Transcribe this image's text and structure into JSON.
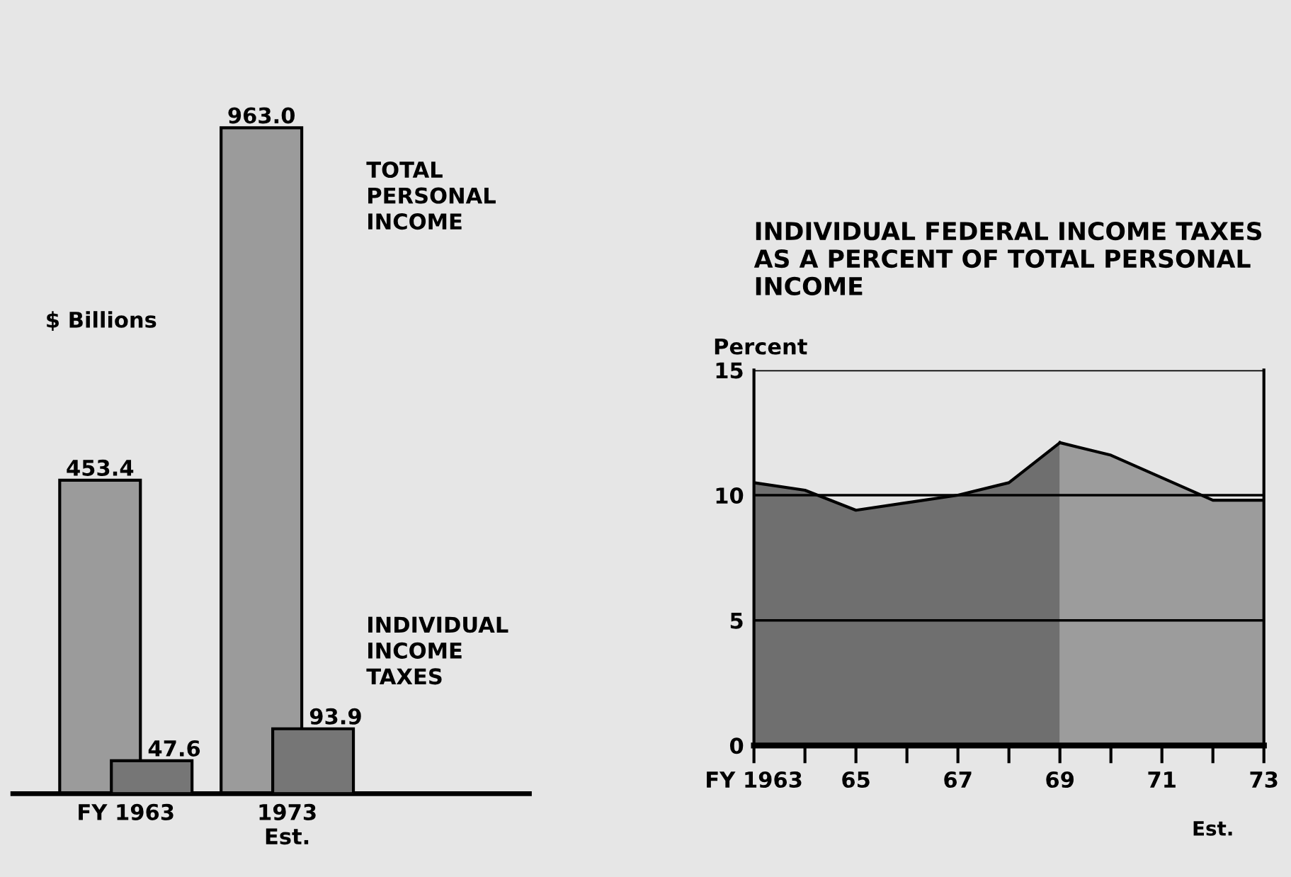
{
  "chart_data": [
    {
      "type": "bar",
      "ylabel": "$ Billions",
      "categories": [
        "FY 1963",
        "1973\nEst."
      ],
      "data_labels": true,
      "legend": false,
      "series": [
        {
          "name": "TOTAL PERSONAL INCOME",
          "color": "#9b9b9b",
          "values": [
            453.4,
            963.0
          ],
          "value_labels": [
            "453.4",
            "963.0"
          ]
        },
        {
          "name": "INDIVIDUAL INCOME TAXES",
          "color": "#767676",
          "values": [
            47.6,
            93.9
          ]
        }
      ]
    },
    {
      "type": "area",
      "title": "INDIVIDUAL FEDERAL INCOME TAXES AS A PERCENT OF TOTAL PERSONAL INCOME",
      "ylabel": "Percent",
      "xlim": [
        1963,
        1973
      ],
      "ylim": [
        0,
        15
      ],
      "yticks": [
        0,
        5,
        10,
        15
      ],
      "grid": "y",
      "legend": false,
      "xticks": [
        {
          "value": 1963,
          "label": "FY 1963"
        },
        {
          "value": 1965,
          "label": "65"
        },
        {
          "value": 1967,
          "label": "67"
        },
        {
          "value": 1969,
          "label": "69"
        },
        {
          "value": 1971,
          "label": "71"
        },
        {
          "value": 1973,
          "label": "73"
        }
      ],
      "annotations": [
        "Est."
      ],
      "series": [
        {
          "color": "#6f6f6f",
          "x": [
            1963,
            1964,
            1965,
            1966,
            1967,
            1968,
            1969
          ],
          "values": [
            10.5,
            10.2,
            9.4,
            9.7,
            10.0,
            10.5,
            12.1
          ]
        },
        {
          "color": "#9c9c9c",
          "x": [
            1969,
            1970,
            1971,
            1972,
            1973
          ],
          "values": [
            12.1,
            11.6,
            10.7,
            9.8,
            9.8
          ]
        }
      ]
    }
  ]
}
